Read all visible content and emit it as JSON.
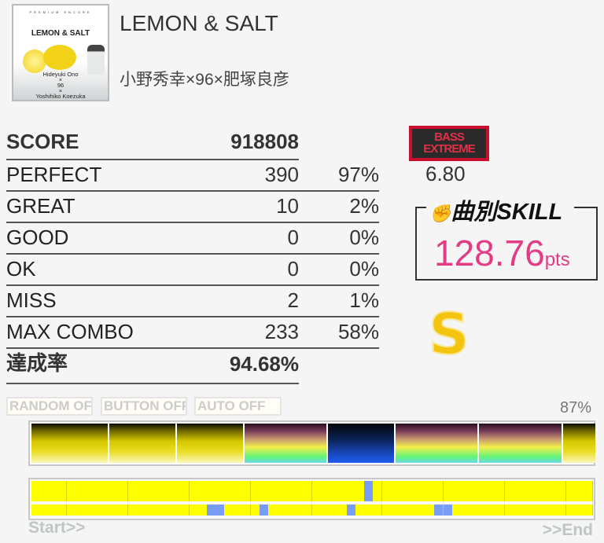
{
  "song": {
    "title": "LEMON & SALT",
    "artist": "小野秀幸×96×肥塚良彦",
    "jacket": {
      "header": "PREMIUM ENCORE",
      "title": "LEMON & SALT",
      "credits": [
        "Hideyuki Ono",
        "×",
        "96",
        "×",
        "Yoshihiko Koezuka"
      ]
    }
  },
  "results": {
    "score_label": "SCORE",
    "score": "918808",
    "rows": [
      {
        "label": "PERFECT",
        "count": "390",
        "percent": "97%"
      },
      {
        "label": "GREAT",
        "count": "10",
        "percent": "2%"
      },
      {
        "label": "GOOD",
        "count": "0",
        "percent": "0%"
      },
      {
        "label": "OK",
        "count": "0",
        "percent": "0%"
      },
      {
        "label": "MISS",
        "count": "2",
        "percent": "1%"
      },
      {
        "label": "MAX COMBO",
        "count": "233",
        "percent": "58%"
      }
    ],
    "achievement_label": "達成率",
    "achievement": "94.68%"
  },
  "difficulty": {
    "line1": "BASS",
    "line2": "EXTREME",
    "level": "6.80",
    "color": "#c8102e"
  },
  "skill": {
    "header": "曲別SKILL",
    "value": "128.76",
    "unit": "pts",
    "color": "#e23c85"
  },
  "rank": "S",
  "options": {
    "random": "RANDOM OFF",
    "button": "BUTTON OFF",
    "auto": "AUTO OFF"
  },
  "gauge": {
    "percent_label": "87%",
    "segments": [
      "yellow",
      "yellow",
      "yellow",
      "rainbow",
      "blue",
      "rainbow",
      "rainbow",
      "yellow"
    ]
  },
  "timeline": {
    "cells": 64,
    "lane1_blue_cells": [
      38
    ],
    "lane2_blue_cells": [
      20,
      21,
      26,
      36,
      46,
      47
    ],
    "cell_color": "#ffff00",
    "marked_color": "#7b9cf5",
    "start_label": "Start>>",
    "end_label": ">>End"
  }
}
